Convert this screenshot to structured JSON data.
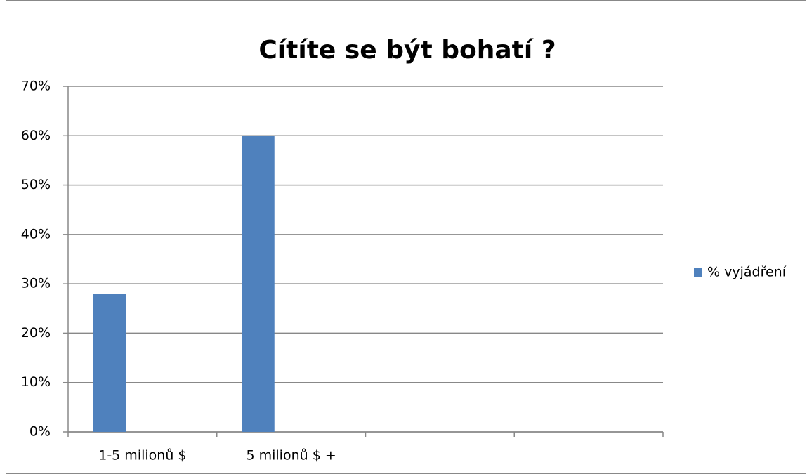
{
  "chart_data": {
    "type": "bar",
    "title": "Cítíte se být bohatí ?",
    "categories": [
      "1-5 milionů $",
      "5 milionů $ +",
      null,
      null
    ],
    "series": [
      {
        "name": "% vyjádření",
        "color": "#4f81bd",
        "values": [
          28,
          60,
          null,
          null
        ]
      }
    ],
    "ylim": [
      0,
      70
    ],
    "yticks": [
      {
        "value": 0,
        "label": "0%"
      },
      {
        "value": 10,
        "label": "10%"
      },
      {
        "value": 20,
        "label": "20%"
      },
      {
        "value": 30,
        "label": "30%"
      },
      {
        "value": 40,
        "label": "40%"
      },
      {
        "value": 50,
        "label": "50%"
      },
      {
        "value": 60,
        "label": "60%"
      },
      {
        "value": 70,
        "label": "70%"
      }
    ],
    "grid": true,
    "legend": "right"
  }
}
